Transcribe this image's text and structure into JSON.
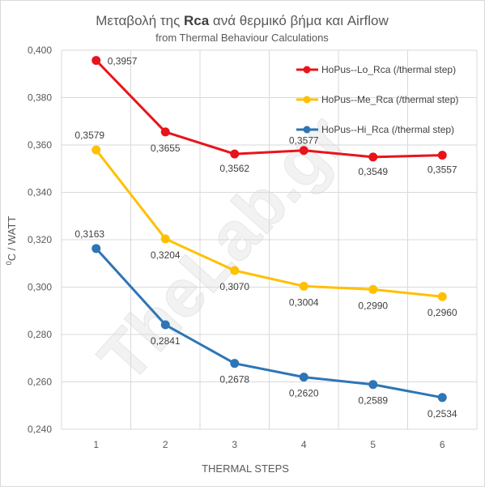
{
  "chart_data": {
    "type": "line",
    "title_main_pre": "Μεταβολή της ",
    "title_main_bold": "Rca",
    "title_main_post": " ανά θερμικό βήμα και  Airflow",
    "subtitle": "from Thermal Behaviour Calculations",
    "xlabel": "THERMAL  STEPS",
    "ylabel_sup": "0",
    "ylabel_rest": "C / WATT",
    "x": [
      1,
      2,
      3,
      4,
      5,
      6
    ],
    "x_tick_labels": [
      "1",
      "2",
      "3",
      "4",
      "5",
      "6"
    ],
    "ylim": [
      0.24,
      0.4
    ],
    "y_ticks": [
      0.24,
      0.26,
      0.28,
      0.3,
      0.32,
      0.34,
      0.36,
      0.38,
      0.4
    ],
    "y_tick_labels": [
      "0,240",
      "0,260",
      "0,280",
      "0,300",
      "0,320",
      "0,340",
      "0,360",
      "0,380",
      "0,400"
    ],
    "grid": true,
    "legend_position": "top-right",
    "watermark": "TheLab.gr",
    "series": [
      {
        "name": "HoPus--Lo_Rca (/thermal step)",
        "color": "#e8141b",
        "values": [
          0.3957,
          0.3655,
          0.3562,
          0.3577,
          0.3549,
          0.3557
        ],
        "labels": [
          "0,3957",
          "0,3655",
          "0,3562",
          "0,3577",
          "0,3549",
          "0,3557"
        ]
      },
      {
        "name": "HoPus--Me_Rca (/thermal step)",
        "color": "#ffc000",
        "values": [
          0.3579,
          0.3204,
          0.307,
          0.3004,
          0.299,
          0.296
        ],
        "labels": [
          "0,3579",
          "0,3204",
          "0,3070",
          "0,3004",
          "0,2990",
          "0,2960"
        ]
      },
      {
        "name": "HoPus--Hi_Rca (/thermal step)",
        "color": "#2e75b6",
        "values": [
          0.3163,
          0.2841,
          0.2678,
          0.262,
          0.2589,
          0.2534
        ],
        "labels": [
          "0,3163",
          "0,2841",
          "0,2678",
          "0,2620",
          "0,2589",
          "0,2534"
        ]
      }
    ]
  }
}
